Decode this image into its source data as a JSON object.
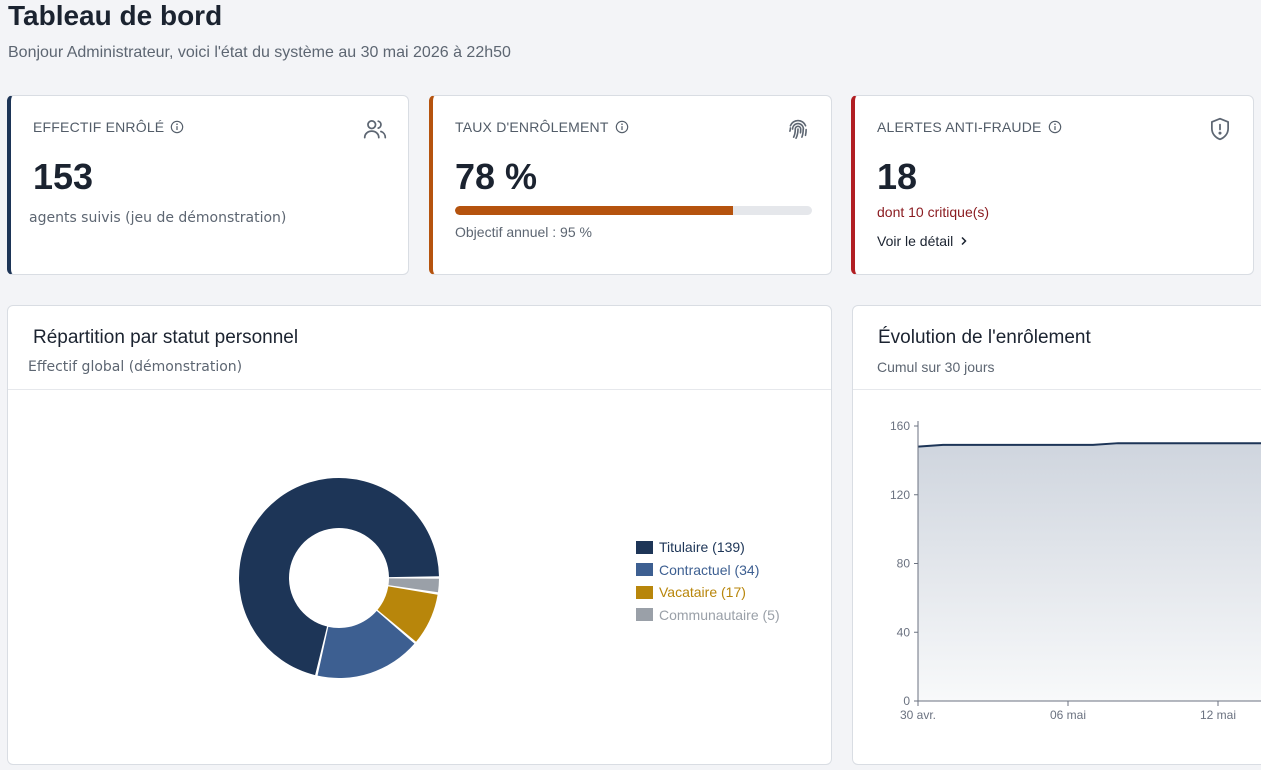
{
  "header": {
    "title": "Tableau de bord",
    "subtitle": "Bonjour Administrateur, voici l'état du système au 30 mai 2026 à 22h50"
  },
  "kpis": {
    "enrolled": {
      "label": "EFFECTIF ENRÔLÉ",
      "value": "153",
      "note": "agents suivis (jeu de démonstration)",
      "icon": "users-icon",
      "accent": "#1d3557"
    },
    "rate": {
      "label": "TAUX D'ENRÔLEMENT",
      "value": "78 %",
      "progress": 78,
      "goal": "Objectif annuel : 95 %",
      "icon": "fingerprint-icon",
      "accent": "#b5530e"
    },
    "fraud": {
      "label": "ALERTES ANTI-FRAUDE",
      "value": "18",
      "critical": "dont 10 critique(s)",
      "link": "Voir le détail",
      "icon": "shield-alert-icon",
      "accent": "#b11e23"
    }
  },
  "status_panel": {
    "title": "Répartition par statut personnel",
    "subtitle": "Effectif global (démonstration)"
  },
  "evolution_panel": {
    "title": "Évolution de l'enrôlement",
    "subtitle": "Cumul sur 30 jours"
  },
  "chart_data": [
    {
      "type": "pie",
      "categories": [
        "Titulaire",
        "Contractuel",
        "Vacataire",
        "Communautaire"
      ],
      "values": [
        139,
        34,
        17,
        5
      ],
      "legend_labels": [
        "Titulaire (139)",
        "Contractuel (34)",
        "Vacataire (17)",
        "Communautaire (5)"
      ],
      "colors": [
        "#1d3557",
        "#3d5f91",
        "#b8860b",
        "#9aa0a8"
      ],
      "legend": "right"
    },
    {
      "type": "area",
      "x_ticks": [
        "30 avr.",
        "06 mai",
        "12 mai"
      ],
      "y_ticks": [
        "0",
        "40",
        "80",
        "120",
        "160"
      ],
      "ylim": [
        0,
        160
      ],
      "points": [
        [
          0,
          148
        ],
        [
          1,
          149
        ],
        [
          2,
          149
        ],
        [
          3,
          149
        ],
        [
          4,
          149
        ],
        [
          5,
          149
        ],
        [
          6,
          149
        ],
        [
          7,
          149
        ],
        [
          8,
          150
        ],
        [
          9,
          150
        ],
        [
          10,
          150
        ],
        [
          11,
          150
        ],
        [
          12,
          150
        ],
        [
          13,
          150
        ],
        [
          14,
          150
        ]
      ],
      "color": "#1d3557"
    }
  ]
}
